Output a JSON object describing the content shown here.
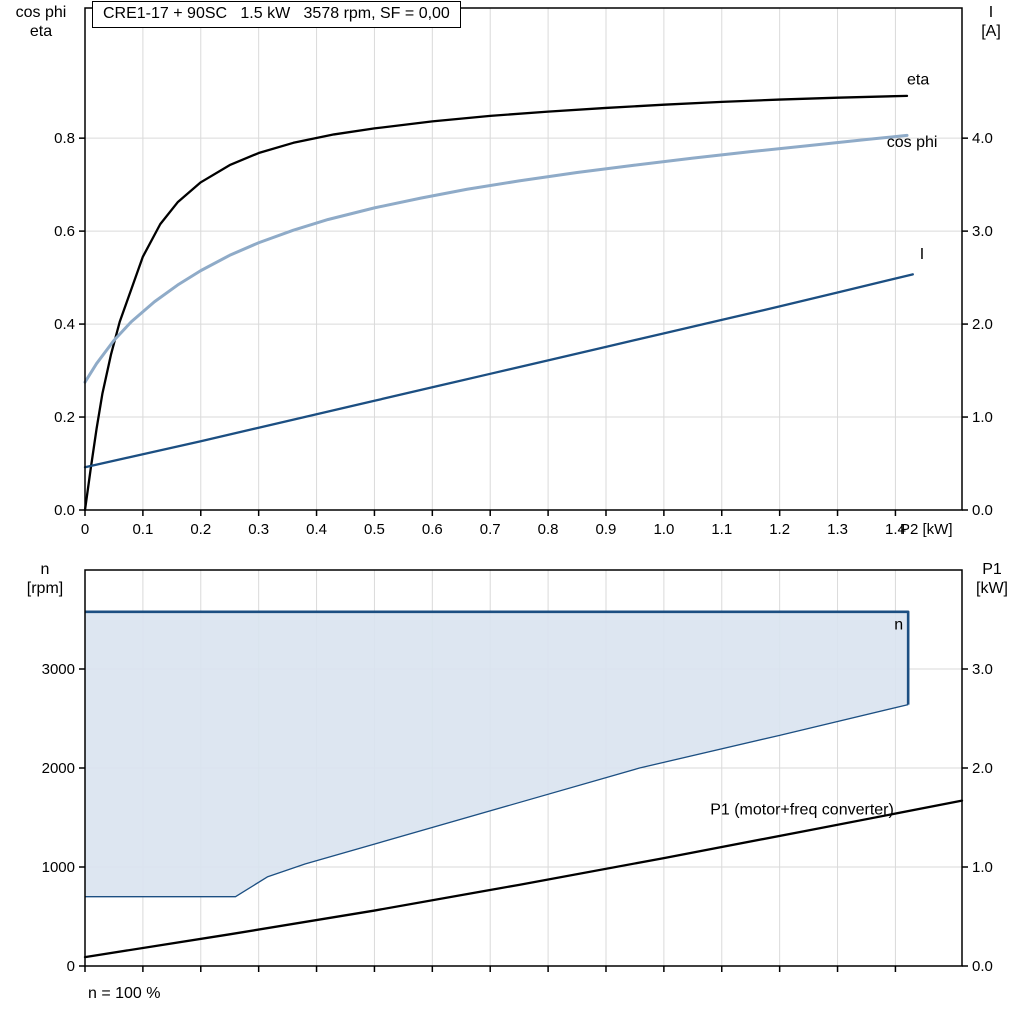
{
  "title_box": {
    "text": "CRE1-17 + 90SC   1.5 kW   3578 rpm, SF = 0,00"
  },
  "labels": {
    "top_left_line1": "cos phi",
    "top_left_line2": "eta",
    "top_right_line1": "I",
    "top_right_line2": "[A]",
    "bottom_left_line1": "n",
    "bottom_left_line2": "[rpm]",
    "bottom_right_line1": "P1",
    "bottom_right_line2": "[kW]",
    "footer": "n = 100 %"
  },
  "colors": {
    "black": "#000000",
    "dark_blue": "#1c4f82",
    "light_blue": "#8fabc8",
    "area_fill": "#d9e3f0",
    "grid": "#dadada",
    "frame": "#000000"
  },
  "chart_data": [
    {
      "type": "line",
      "title": "CRE1-17 + 90SC   1.5 kW   3578 rpm, SF = 0,00",
      "x": {
        "min": 0,
        "max": 1.515,
        "ticks": [
          0,
          0.1,
          0.2,
          0.3,
          0.4,
          0.5,
          0.6,
          0.7,
          0.8,
          0.9,
          1.0,
          1.1,
          1.2,
          1.3,
          1.4
        ],
        "labels": [
          "0",
          "0.1",
          "0.2",
          "0.3",
          "0.4",
          "0.5",
          "0.6",
          "0.7",
          "0.8",
          "0.9",
          "1.0",
          "1.1",
          "1.2",
          "1.3",
          "1.4"
        ],
        "title": "P2 [kW]"
      },
      "y_left": {
        "min": 0,
        "max": 1.08,
        "ticks": [
          0,
          0.2,
          0.4,
          0.6,
          0.8
        ],
        "labels": [
          "0.0",
          "0.2",
          "0.4",
          "0.6",
          "0.8"
        ],
        "title": "cos phi / eta"
      },
      "y_right": {
        "min": 0,
        "max": 5.4,
        "ticks": [
          0,
          1,
          2,
          3,
          4
        ],
        "labels": [
          "0.0",
          "1.0",
          "2.0",
          "3.0",
          "4.0"
        ],
        "title": "I [A]"
      },
      "series": [
        {
          "name": "eta",
          "axis": "left",
          "color": "#000000",
          "width": 2.3,
          "label": {
            "text": "eta",
            "x": 1.42,
            "y": 0.915
          },
          "points": [
            [
              0,
              0
            ],
            [
              0.01,
              0.09
            ],
            [
              0.02,
              0.175
            ],
            [
              0.03,
              0.25
            ],
            [
              0.045,
              0.335
            ],
            [
              0.06,
              0.405
            ],
            [
              0.08,
              0.475
            ],
            [
              0.1,
              0.545
            ],
            [
              0.13,
              0.615
            ],
            [
              0.16,
              0.662
            ],
            [
              0.2,
              0.705
            ],
            [
              0.25,
              0.742
            ],
            [
              0.3,
              0.768
            ],
            [
              0.36,
              0.79
            ],
            [
              0.43,
              0.808
            ],
            [
              0.5,
              0.821
            ],
            [
              0.6,
              0.836
            ],
            [
              0.7,
              0.848
            ],
            [
              0.8,
              0.857
            ],
            [
              0.9,
              0.865
            ],
            [
              1.0,
              0.872
            ],
            [
              1.1,
              0.878
            ],
            [
              1.2,
              0.883
            ],
            [
              1.3,
              0.887
            ],
            [
              1.42,
              0.891
            ]
          ]
        },
        {
          "name": "cos phi",
          "axis": "left",
          "color": "#8fabc8",
          "width": 3,
          "label": {
            "text": "cos phi",
            "x": 1.385,
            "y": 0.781
          },
          "points": [
            [
              0,
              0.275
            ],
            [
              0.02,
              0.315
            ],
            [
              0.05,
              0.365
            ],
            [
              0.08,
              0.405
            ],
            [
              0.12,
              0.448
            ],
            [
              0.16,
              0.484
            ],
            [
              0.2,
              0.515
            ],
            [
              0.25,
              0.548
            ],
            [
              0.3,
              0.575
            ],
            [
              0.36,
              0.602
            ],
            [
              0.42,
              0.625
            ],
            [
              0.5,
              0.65
            ],
            [
              0.58,
              0.671
            ],
            [
              0.66,
              0.69
            ],
            [
              0.75,
              0.708
            ],
            [
              0.85,
              0.726
            ],
            [
              0.95,
              0.742
            ],
            [
              1.05,
              0.757
            ],
            [
              1.15,
              0.771
            ],
            [
              1.25,
              0.784
            ],
            [
              1.35,
              0.797
            ],
            [
              1.42,
              0.806
            ]
          ]
        },
        {
          "name": "I",
          "axis": "right",
          "color": "#1c4f82",
          "width": 2.3,
          "label": {
            "text": "I",
            "x": 1.442,
            "y": 2.7
          },
          "points": [
            [
              0,
              0.46
            ],
            [
              0.1,
              0.6
            ],
            [
              0.2,
              0.74
            ],
            [
              0.3,
              0.885
            ],
            [
              0.4,
              1.03
            ],
            [
              0.5,
              1.175
            ],
            [
              0.6,
              1.32
            ],
            [
              0.7,
              1.465
            ],
            [
              0.8,
              1.61
            ],
            [
              0.9,
              1.755
            ],
            [
              1.0,
              1.9
            ],
            [
              1.1,
              2.045
            ],
            [
              1.2,
              2.19
            ],
            [
              1.3,
              2.34
            ],
            [
              1.43,
              2.535
            ]
          ]
        }
      ]
    },
    {
      "type": "area+line",
      "x": {
        "min": 0,
        "max": 1.515,
        "ticks": [
          0,
          0.1,
          0.2,
          0.3,
          0.4,
          0.5,
          0.6,
          0.7,
          0.8,
          0.9,
          1.0,
          1.1,
          1.2,
          1.3,
          1.4
        ],
        "labels": null,
        "title": null
      },
      "y_left": {
        "min": 0,
        "max": 4000,
        "ticks": [
          0,
          1000,
          2000,
          3000
        ],
        "labels": [
          "0",
          "1000",
          "2000",
          "3000"
        ],
        "title": "n [rpm]"
      },
      "y_right": {
        "min": 0,
        "max": 4.0,
        "ticks": [
          0,
          1,
          2,
          3
        ],
        "labels": [
          "0.0",
          "1.0",
          "2.0",
          "3.0"
        ],
        "title": "P1 [kW]"
      },
      "area": {
        "name": "speed-range",
        "fill": "#d9e3f0",
        "stroke": "#1c4f82",
        "points_top": [
          [
            0,
            3578
          ],
          [
            1.422,
            3578
          ],
          [
            1.422,
            2640
          ]
        ],
        "points_bottom": [
          [
            0,
            700
          ],
          [
            0.26,
            700
          ],
          [
            0.315,
            900
          ],
          [
            0.38,
            1030
          ],
          [
            0.958,
            2000
          ],
          [
            1.2,
            2330
          ],
          [
            1.422,
            2640
          ]
        ],
        "label": {
          "text": "n",
          "x": 1.398,
          "y": 3400
        }
      },
      "series": [
        {
          "name": "P1",
          "axis": "right",
          "color": "#000000",
          "width": 2.3,
          "label": {
            "text": "P1 (motor+freq converter)",
            "x": 1.08,
            "y": 1.53
          },
          "points": [
            [
              0,
              0.09
            ],
            [
              0.25,
              0.32
            ],
            [
              0.5,
              0.56
            ],
            [
              0.75,
              0.82
            ],
            [
              1.0,
              1.09
            ],
            [
              1.25,
              1.37
            ],
            [
              1.515,
              1.67
            ]
          ]
        }
      ]
    }
  ]
}
